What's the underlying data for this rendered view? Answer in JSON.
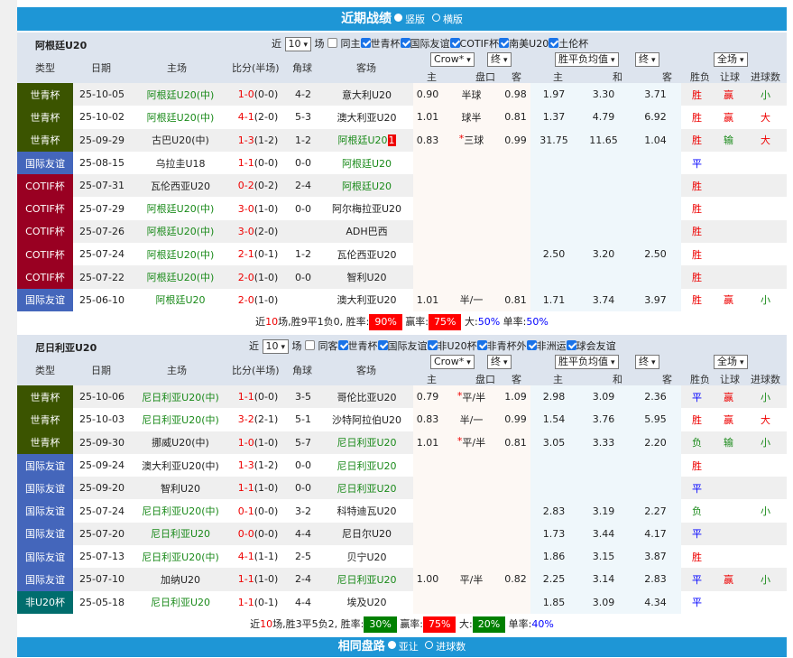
{
  "header": {
    "title": "近期战绩",
    "opt1": "竖版",
    "opt2": "横版",
    "selected": "竖版"
  },
  "colors": {
    "bar": "#1e96d6",
    "type_世青杯": "#3b5400",
    "type_国际友谊": "#4466bb",
    "type_COTIF杯": "#990022",
    "type_非U20杯": "#006d6d"
  },
  "columns": {
    "type": "类型",
    "date": "日期",
    "home": "主场",
    "score": "比分(半场)",
    "corner": "角球",
    "away": "客场",
    "company": "Crow*",
    "final": "终",
    "avg": "胜平负均值",
    "final2": "终",
    "period": "全场",
    "sub": [
      "主",
      "盘口",
      "客",
      "主",
      "和",
      "客",
      "胜负",
      "让球",
      "进球数"
    ]
  },
  "sections": [
    {
      "team": "阿根廷U20",
      "near": "近",
      "count": "10",
      "unit": "场",
      "same": "同主",
      "filters": [
        "世青杯",
        "国际友谊",
        "COTIF杯",
        "南美U20",
        "土伦杯"
      ],
      "rows": [
        {
          "type": "世青杯",
          "date": "25-10-05",
          "home": "阿根廷U20(中)",
          "hg": 1,
          "score": "1-0",
          "half": "(0-0)",
          "corner": "4-2",
          "away": "意大利U20",
          "ag": 0,
          "o1": "0.90",
          "pan": "半球",
          "o2": "0.98",
          "w": "1.97",
          "d": "3.30",
          "l": "3.71",
          "res": "胜",
          "rang": "赢",
          "ou": "小"
        },
        {
          "type": "世青杯",
          "date": "25-10-02",
          "home": "阿根廷U20(中)",
          "hg": 1,
          "score": "4-1",
          "half": "(2-0)",
          "corner": "5-3",
          "away": "澳大利亚U20",
          "ag": 0,
          "o1": "1.01",
          "pan": "球半",
          "o2": "0.81",
          "w": "1.37",
          "d": "4.79",
          "l": "6.92",
          "res": "胜",
          "rang": "赢",
          "ou": "大"
        },
        {
          "type": "世青杯",
          "date": "25-09-29",
          "home": "古巴U20(中)",
          "hg": 0,
          "score": "1-3",
          "half": "(1-2)",
          "corner": "1-2",
          "away": "阿根廷U20",
          "ag": 1,
          "redcard": "1",
          "o1": "0.83",
          "pan": "*三球",
          "o2": "0.99",
          "w": "31.75",
          "d": "11.65",
          "l": "1.04",
          "res": "胜",
          "rang": "输",
          "ou": "大"
        },
        {
          "type": "国际友谊",
          "date": "25-08-15",
          "home": "乌拉圭U18",
          "hg": 0,
          "score": "1-1",
          "half": "(0-0)",
          "corner": "0-0",
          "away": "阿根廷U20",
          "ag": 1,
          "o1": "",
          "pan": "",
          "o2": "",
          "w": "",
          "d": "",
          "l": "",
          "res": "平",
          "rang": "",
          "ou": ""
        },
        {
          "type": "COTIF杯",
          "date": "25-07-31",
          "home": "瓦伦西亚U20",
          "hg": 0,
          "score": "0-2",
          "half": "(0-2)",
          "corner": "2-4",
          "away": "阿根廷U20",
          "ag": 1,
          "o1": "",
          "pan": "",
          "o2": "",
          "w": "",
          "d": "",
          "l": "",
          "res": "胜",
          "rang": "",
          "ou": ""
        },
        {
          "type": "COTIF杯",
          "date": "25-07-29",
          "home": "阿根廷U20(中)",
          "hg": 1,
          "score": "3-0",
          "half": "(1-0)",
          "corner": "0-0",
          "away": "阿尔梅拉亚U20",
          "ag": 0,
          "o1": "",
          "pan": "",
          "o2": "",
          "w": "",
          "d": "",
          "l": "",
          "res": "胜",
          "rang": "",
          "ou": ""
        },
        {
          "type": "COTIF杯",
          "date": "25-07-26",
          "home": "阿根廷U20(中)",
          "hg": 1,
          "score": "3-0",
          "half": "(2-0)",
          "corner": "",
          "away": "ADH巴西",
          "ag": 0,
          "o1": "",
          "pan": "",
          "o2": "",
          "w": "",
          "d": "",
          "l": "",
          "res": "胜",
          "rang": "",
          "ou": ""
        },
        {
          "type": "COTIF杯",
          "date": "25-07-24",
          "home": "阿根廷U20(中)",
          "hg": 1,
          "score": "2-1",
          "half": "(0-1)",
          "corner": "1-2",
          "away": "瓦伦西亚U20",
          "ag": 0,
          "o1": "",
          "pan": "",
          "o2": "",
          "w": "2.50",
          "d": "3.20",
          "l": "2.50",
          "res": "胜",
          "rang": "",
          "ou": ""
        },
        {
          "type": "COTIF杯",
          "date": "25-07-22",
          "home": "阿根廷U20(中)",
          "hg": 1,
          "score": "2-0",
          "half": "(1-0)",
          "corner": "0-0",
          "away": "智利U20",
          "ag": 0,
          "o1": "",
          "pan": "",
          "o2": "",
          "w": "",
          "d": "",
          "l": "",
          "res": "胜",
          "rang": "",
          "ou": ""
        },
        {
          "type": "国际友谊",
          "date": "25-06-10",
          "home": "阿根廷U20",
          "hg": 1,
          "score": "2-0",
          "half": "(1-0)",
          "corner": "",
          "away": "澳大利亚U20",
          "ag": 0,
          "o1": "1.01",
          "pan": "半/一",
          "o2": "0.81",
          "w": "1.71",
          "d": "3.74",
          "l": "3.97",
          "res": "胜",
          "rang": "赢",
          "ou": "小"
        }
      ],
      "summary": {
        "pre": "近",
        "n": "10",
        "mid": "场,胜9平1负0, 胜率:",
        "win": "90%",
        "win_color": "#ff0000",
        "rang_label": "赢率:",
        "rang": "75%",
        "rang_color": "#ff0000",
        "big_label": "大:",
        "big": "50%",
        "big_color": "",
        "odd_label": "单率:",
        "odd": "50%"
      }
    },
    {
      "team": "尼日利亚U20",
      "near": "近",
      "count": "10",
      "unit": "场",
      "same": "同客",
      "filters": [
        "世青杯",
        "国际友谊",
        "非U20杯",
        "非青杯外",
        "非洲运",
        "球会友谊"
      ],
      "rows": [
        {
          "type": "世青杯",
          "date": "25-10-06",
          "home": "尼日利亚U20(中)",
          "hg": 1,
          "score": "1-1",
          "half": "(0-0)",
          "corner": "3-5",
          "away": "哥伦比亚U20",
          "ag": 0,
          "o1": "0.79",
          "pan": "*平/半",
          "o2": "1.09",
          "w": "2.98",
          "d": "3.09",
          "l": "2.36",
          "res": "平",
          "rang": "赢",
          "ou": "小"
        },
        {
          "type": "世青杯",
          "date": "25-10-03",
          "home": "尼日利亚U20(中)",
          "hg": 1,
          "score": "3-2",
          "half": "(2-1)",
          "corner": "5-1",
          "away": "沙特阿拉伯U20",
          "ag": 0,
          "o1": "0.83",
          "pan": "半/一",
          "o2": "0.99",
          "w": "1.54",
          "d": "3.76",
          "l": "5.95",
          "res": "胜",
          "rang": "赢",
          "ou": "大"
        },
        {
          "type": "世青杯",
          "date": "25-09-30",
          "home": "挪威U20(中)",
          "hg": 0,
          "score": "1-0",
          "half": "(1-0)",
          "corner": "5-7",
          "away": "尼日利亚U20",
          "ag": 1,
          "o1": "1.01",
          "pan": "*平/半",
          "o2": "0.81",
          "w": "3.05",
          "d": "3.33",
          "l": "2.20",
          "res": "负",
          "rang": "输",
          "ou": "小"
        },
        {
          "type": "国际友谊",
          "date": "25-09-24",
          "home": "澳大利亚U20(中)",
          "hg": 0,
          "score": "1-3",
          "half": "(1-2)",
          "corner": "0-0",
          "away": "尼日利亚U20",
          "ag": 1,
          "o1": "",
          "pan": "",
          "o2": "",
          "w": "",
          "d": "",
          "l": "",
          "res": "胜",
          "rang": "",
          "ou": ""
        },
        {
          "type": "国际友谊",
          "date": "25-09-20",
          "home": "智利U20",
          "hg": 0,
          "score": "1-1",
          "half": "(1-0)",
          "corner": "0-0",
          "away": "尼日利亚U20",
          "ag": 1,
          "o1": "",
          "pan": "",
          "o2": "",
          "w": "",
          "d": "",
          "l": "",
          "res": "平",
          "rang": "",
          "ou": ""
        },
        {
          "type": "国际友谊",
          "date": "25-07-24",
          "home": "尼日利亚U20(中)",
          "hg": 1,
          "score": "0-1",
          "half": "(0-0)",
          "corner": "3-2",
          "away": "科特迪瓦U20",
          "ag": 0,
          "o1": "",
          "pan": "",
          "o2": "",
          "w": "2.83",
          "d": "3.19",
          "l": "2.27",
          "res": "负",
          "rang": "",
          "ou": "小"
        },
        {
          "type": "国际友谊",
          "date": "25-07-20",
          "home": "尼日利亚U20",
          "hg": 1,
          "score": "0-0",
          "half": "(0-0)",
          "corner": "4-4",
          "away": "尼日尔U20",
          "ag": 0,
          "o1": "",
          "pan": "",
          "o2": "",
          "w": "1.73",
          "d": "3.44",
          "l": "4.17",
          "res": "平",
          "rang": "",
          "ou": ""
        },
        {
          "type": "国际友谊",
          "date": "25-07-13",
          "home": "尼日利亚U20(中)",
          "hg": 1,
          "score": "4-1",
          "half": "(1-1)",
          "corner": "2-5",
          "away": "贝宁U20",
          "ag": 0,
          "o1": "",
          "pan": "",
          "o2": "",
          "w": "1.86",
          "d": "3.15",
          "l": "3.87",
          "res": "胜",
          "rang": "",
          "ou": ""
        },
        {
          "type": "国际友谊",
          "date": "25-07-10",
          "home": "加纳U20",
          "hg": 0,
          "score": "1-1",
          "half": "(1-0)",
          "corner": "2-4",
          "away": "尼日利亚U20",
          "ag": 1,
          "o1": "1.00",
          "pan": "平/半",
          "o2": "0.82",
          "w": "2.25",
          "d": "3.14",
          "l": "2.83",
          "res": "平",
          "rang": "赢",
          "ou": "小"
        },
        {
          "type": "非U20杯",
          "date": "25-05-18",
          "home": "尼日利亚U20",
          "hg": 1,
          "score": "1-1",
          "half": "(0-1)",
          "corner": "4-4",
          "away": "埃及U20",
          "ag": 0,
          "o1": "",
          "pan": "",
          "o2": "",
          "w": "1.85",
          "d": "3.09",
          "l": "4.34",
          "res": "平",
          "rang": "",
          "ou": ""
        }
      ],
      "summary": {
        "pre": "近",
        "n": "10",
        "mid": "场,胜3平5负2, 胜率:",
        "win": "30%",
        "win_color": "#008000",
        "rang_label": "赢率:",
        "rang": "75%",
        "rang_color": "#ff0000",
        "big_label": "大:",
        "big": "20%",
        "big_color": "#008000",
        "odd_label": "单率:",
        "odd": "40%"
      }
    }
  ],
  "footer": {
    "title": "相同盘路",
    "opt1": "亚让",
    "opt2": "进球数",
    "selected": "亚让"
  }
}
